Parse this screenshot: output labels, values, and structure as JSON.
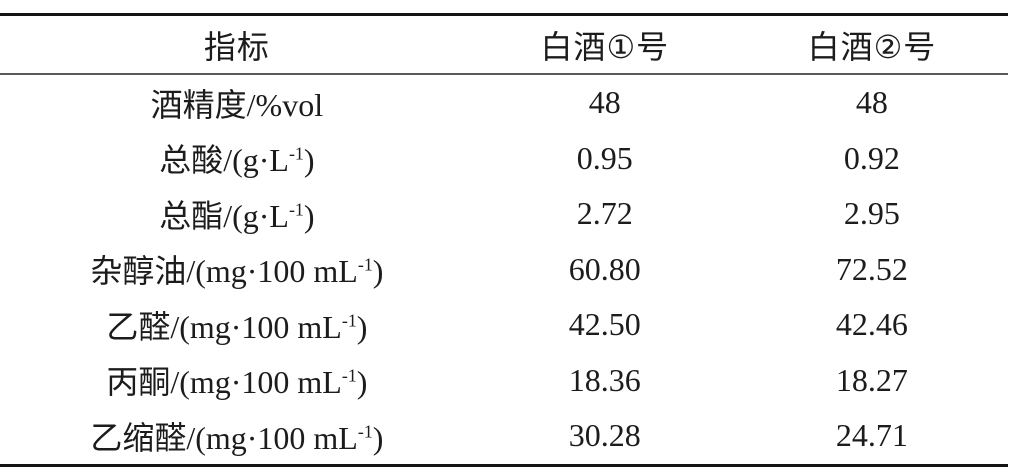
{
  "page": {
    "background_color": "#ffffff",
    "text_color": "#1c1c1c",
    "rule_top_color": "#141414",
    "rule_header_color": "#5a5a5a",
    "rule_bottom_color": "#141414"
  },
  "table": {
    "columns": [
      "指标",
      "白酒①号",
      "白酒②号"
    ],
    "rows": [
      {
        "label_pre": "酒精度/%vol",
        "label_sup": "",
        "label_post": "",
        "values": [
          "48",
          "48"
        ]
      },
      {
        "label_pre": "总酸/(g·L",
        "label_sup": "-1",
        "label_post": ")",
        "values": [
          "0.95",
          "0.92"
        ]
      },
      {
        "label_pre": "总酯/(g·L",
        "label_sup": "-1",
        "label_post": ")",
        "values": [
          "2.72",
          "2.95"
        ]
      },
      {
        "label_pre": "杂醇油/(mg·100 mL",
        "label_sup": "-1",
        "label_post": ")",
        "values": [
          "60.80",
          "72.52"
        ]
      },
      {
        "label_pre": "乙醛/(mg·100 mL",
        "label_sup": "-1",
        "label_post": ")",
        "values": [
          "42.50",
          "42.46"
        ]
      },
      {
        "label_pre": "丙酮/(mg·100 mL",
        "label_sup": "-1",
        "label_post": ")",
        "values": [
          "18.36",
          "18.27"
        ]
      },
      {
        "label_pre": "乙缩醛/(mg·100 mL",
        "label_sup": "-1",
        "label_post": ")",
        "values": [
          "30.28",
          "24.71"
        ]
      }
    ]
  }
}
